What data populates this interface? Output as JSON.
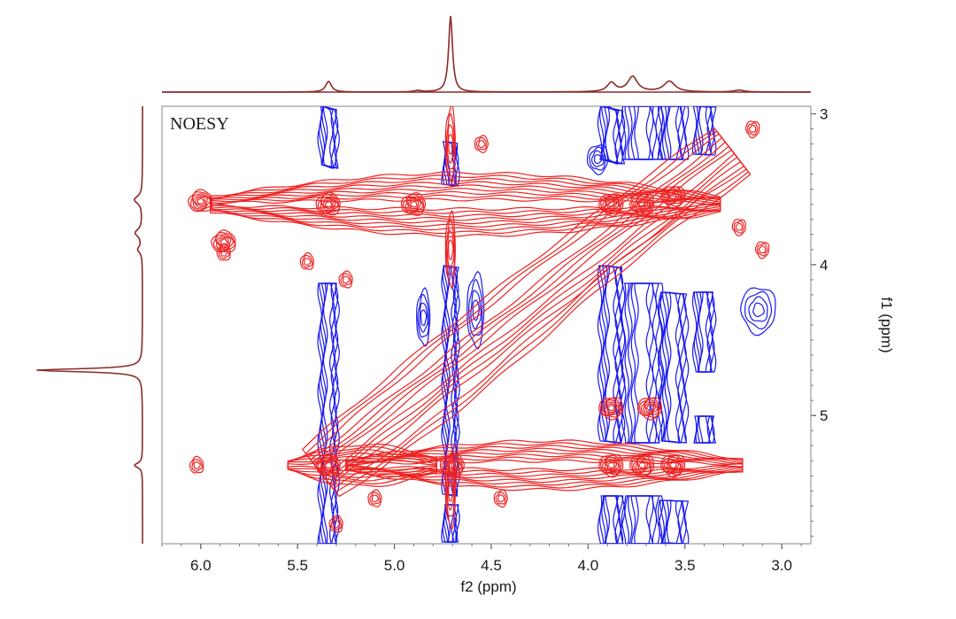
{
  "chart_data": {
    "type": "contour",
    "title": "NOESY",
    "xlabel": "f2 (ppm)",
    "ylabel": "f1 (ppm)",
    "xlim": [
      6.2,
      2.85
    ],
    "ylim": [
      2.95,
      5.85
    ],
    "x_ticks": [
      "6.0",
      "5.5",
      "5.0",
      "4.5",
      "4.0",
      "3.5",
      "3.0"
    ],
    "x_tick_values": [
      6.0,
      5.5,
      5.0,
      4.5,
      4.0,
      3.5,
      3.0
    ],
    "y_ticks": [
      "3",
      "4",
      "5"
    ],
    "y_tick_values": [
      3,
      4,
      5
    ],
    "grid": false,
    "colors": {
      "positive": "#ee2222",
      "negative": "#1a1aee",
      "projection": "#8b2a2a",
      "frame": "#9a9a9a"
    },
    "projection_peaks_ppm": [
      5.34,
      4.71,
      3.88,
      3.77,
      3.58
    ],
    "diagonal": {
      "from": [
        5.38,
        5.38
      ],
      "to": [
        3.22,
        3.22
      ]
    },
    "cross_peak_rows_ppm": [
      3.6,
      5.33
    ],
    "negative_stripes_ppm": [
      5.34,
      4.71,
      3.88,
      3.72,
      3.56
    ]
  }
}
